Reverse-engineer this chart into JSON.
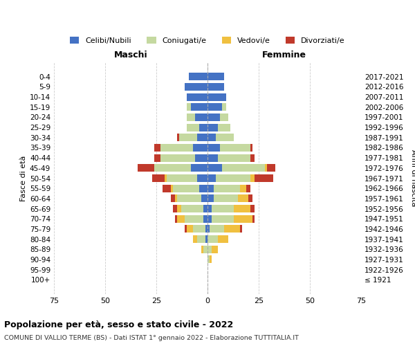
{
  "age_groups": [
    "100+",
    "95-99",
    "90-94",
    "85-89",
    "80-84",
    "75-79",
    "70-74",
    "65-69",
    "60-64",
    "55-59",
    "50-54",
    "45-49",
    "40-44",
    "35-39",
    "30-34",
    "25-29",
    "20-24",
    "15-19",
    "10-14",
    "5-9",
    "0-4"
  ],
  "birth_years": [
    "≤ 1921",
    "1922-1926",
    "1927-1931",
    "1932-1936",
    "1937-1941",
    "1942-1946",
    "1947-1951",
    "1952-1956",
    "1957-1961",
    "1962-1966",
    "1967-1971",
    "1972-1976",
    "1977-1981",
    "1982-1986",
    "1987-1991",
    "1992-1996",
    "1997-2001",
    "2002-2006",
    "2007-2011",
    "2012-2016",
    "2017-2021"
  ],
  "maschi_celibi": [
    0,
    0,
    0,
    0,
    1,
    1,
    2,
    2,
    3,
    4,
    5,
    8,
    6,
    7,
    5,
    4,
    6,
    8,
    10,
    11,
    9
  ],
  "maschi_coniugati": [
    0,
    0,
    0,
    2,
    4,
    6,
    9,
    11,
    12,
    13,
    15,
    18,
    17,
    16,
    9,
    6,
    4,
    2,
    0,
    0,
    0
  ],
  "maschi_vedovi": [
    0,
    0,
    0,
    1,
    2,
    3,
    4,
    2,
    1,
    1,
    1,
    0,
    0,
    0,
    0,
    0,
    0,
    0,
    0,
    0,
    0
  ],
  "maschi_divorziati": [
    0,
    0,
    0,
    0,
    0,
    1,
    1,
    2,
    2,
    4,
    6,
    8,
    3,
    3,
    1,
    0,
    0,
    0,
    0,
    0,
    0
  ],
  "femmine_celibi": [
    0,
    0,
    0,
    0,
    0,
    1,
    2,
    2,
    3,
    3,
    4,
    7,
    5,
    6,
    4,
    5,
    6,
    7,
    9,
    8,
    8
  ],
  "femmine_coniugati": [
    0,
    0,
    1,
    2,
    5,
    7,
    11,
    11,
    12,
    13,
    17,
    21,
    16,
    15,
    9,
    6,
    4,
    2,
    0,
    0,
    0
  ],
  "femmine_vedovi": [
    0,
    0,
    1,
    3,
    5,
    8,
    9,
    8,
    5,
    3,
    2,
    1,
    0,
    0,
    0,
    0,
    0,
    0,
    0,
    0,
    0
  ],
  "femmine_divorziati": [
    0,
    0,
    0,
    0,
    0,
    1,
    1,
    2,
    2,
    2,
    9,
    4,
    2,
    1,
    0,
    0,
    0,
    0,
    0,
    0,
    0
  ],
  "color_celibi": "#4472c4",
  "color_coniugati": "#c5d9a0",
  "color_vedovi": "#f0c040",
  "color_divorziati": "#c0392b",
  "xlim": 75,
  "title": "Popolazione per età, sesso e stato civile - 2022",
  "subtitle": "COMUNE DI VALLIO TERME (BS) - Dati ISTAT 1° gennaio 2022 - Elaborazione TUTTITALIA.IT",
  "ylabel": "Fasce di età",
  "ylabel_right": "Anni di nascita",
  "label_maschi": "Maschi",
  "label_femmine": "Femmine",
  "legend_celibi": "Celibi/Nubili",
  "legend_coniugati": "Coniugati/e",
  "legend_vedovi": "Vedovi/e",
  "legend_divorziati": "Divorziati/e",
  "bg_color": "#ffffff",
  "grid_color": "#cccccc"
}
